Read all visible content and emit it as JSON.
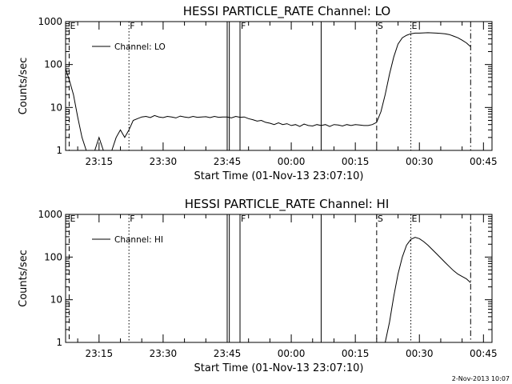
{
  "footer": {
    "timestamp": "2-Nov-2013 10:07"
  },
  "chart_data": [
    {
      "type": "line",
      "title": "HESSI PARTICLE_RATE Channel: LO",
      "xlabel": "Start Time (01-Nov-13 23:07:10)",
      "ylabel": "Counts/sec",
      "yscale": "log",
      "ylim": [
        1,
        1000
      ],
      "xlim": [
        "23:07:10",
        "00:47:00"
      ],
      "yticks": [
        "1",
        "10",
        "100",
        "1000"
      ],
      "xticks": [
        "23:15",
        "23:30",
        "23:45",
        "00:00",
        "00:15",
        "00:30",
        "00:45"
      ],
      "legend": {
        "label": "Channel: LO",
        "position": "top-left"
      },
      "markers": [
        {
          "label": "E",
          "time": "23:08",
          "style": "dashed"
        },
        {
          "label": "F",
          "time": "23:22",
          "style": "dotted"
        },
        {
          "label": "",
          "time": "23:45",
          "style": "solid"
        },
        {
          "label": "",
          "time": "23:45:30",
          "style": "solid"
        },
        {
          "label": "F",
          "time": "23:48",
          "style": "solid"
        },
        {
          "label": "",
          "time": "00:07",
          "style": "solid"
        },
        {
          "label": "S",
          "time": "00:20",
          "style": "dashed"
        },
        {
          "label": "E",
          "time": "00:28",
          "style": "dotted"
        },
        {
          "label": "",
          "time": "00:42",
          "style": "dashdot"
        }
      ],
      "series": [
        {
          "x": [
            "23:07:10",
            "23:08",
            "23:09",
            "23:10",
            "23:11",
            "23:12",
            "23:13",
            "23:14",
            "23:15",
            "23:16",
            "23:17",
            "23:18",
            "23:19",
            "23:20",
            "23:21",
            "23:22",
            "23:23",
            "23:24",
            "23:25",
            "23:26",
            "23:27",
            "23:28",
            "23:29",
            "23:30",
            "23:31",
            "23:32",
            "23:33",
            "23:34",
            "23:35",
            "23:36",
            "23:37",
            "23:38",
            "23:39",
            "23:40",
            "23:41",
            "23:42",
            "23:43",
            "23:44",
            "23:45",
            "23:46",
            "23:47",
            "23:48",
            "23:49",
            "23:50",
            "23:51",
            "23:52",
            "23:53",
            "23:54",
            "23:55",
            "23:56",
            "23:57",
            "23:58",
            "23:59",
            "00:00",
            "00:01",
            "00:02",
            "00:03",
            "00:04",
            "00:05",
            "00:06",
            "00:07",
            "00:08",
            "00:09",
            "00:10",
            "00:11",
            "00:12",
            "00:13",
            "00:14",
            "00:15",
            "00:16",
            "00:17",
            "00:18",
            "00:19",
            "00:20",
            "00:21",
            "00:22",
            "00:23",
            "00:24",
            "00:25",
            "00:26",
            "00:27",
            "00:28",
            "00:29",
            "00:30",
            "00:31",
            "00:32",
            "00:33",
            "00:34",
            "00:35",
            "00:36",
            "00:37",
            "00:38",
            "00:39",
            "00:40",
            "00:41",
            "00:42"
          ],
          "values": [
            80,
            45,
            20,
            6,
            2,
            1,
            1,
            1,
            2,
            1,
            1,
            1,
            2,
            3,
            2,
            3,
            5,
            5.5,
            6,
            6.2,
            5.8,
            6.5,
            6,
            5.8,
            6.2,
            6,
            5.7,
            6.3,
            6,
            5.8,
            6.2,
            5.9,
            6,
            6.1,
            5.8,
            6.2,
            5.9,
            6,
            6,
            5.7,
            6.2,
            5.9,
            6,
            5.5,
            5.2,
            4.8,
            5,
            4.5,
            4.3,
            4,
            4.4,
            4,
            4.2,
            3.8,
            4,
            3.6,
            4.1,
            3.8,
            3.7,
            4,
            3.8,
            4,
            3.6,
            4,
            3.9,
            3.7,
            4,
            3.8,
            4,
            3.9,
            3.8,
            3.8,
            4,
            4.5,
            8,
            20,
            60,
            150,
            300,
            420,
            480,
            520,
            540,
            540,
            545,
            550,
            545,
            540,
            530,
            520,
            500,
            460,
            420,
            370,
            320,
            260
          ]
        }
      ]
    },
    {
      "type": "line",
      "title": "HESSI PARTICLE_RATE Channel: HI",
      "xlabel": "Start Time (01-Nov-13 23:07:10)",
      "ylabel": "Counts/sec",
      "yscale": "log",
      "ylim": [
        1,
        1000
      ],
      "xlim": [
        "23:07:10",
        "00:47:00"
      ],
      "yticks": [
        "1",
        "10",
        "100",
        "1000"
      ],
      "xticks": [
        "23:15",
        "23:30",
        "23:45",
        "00:00",
        "00:15",
        "00:30",
        "00:45"
      ],
      "legend": {
        "label": "Channel: HI",
        "position": "top-left"
      },
      "markers": [
        {
          "label": "E",
          "time": "23:08",
          "style": "dashed"
        },
        {
          "label": "F",
          "time": "23:22",
          "style": "dotted"
        },
        {
          "label": "",
          "time": "23:45",
          "style": "solid"
        },
        {
          "label": "",
          "time": "23:45:30",
          "style": "solid"
        },
        {
          "label": "F",
          "time": "23:48",
          "style": "solid"
        },
        {
          "label": "",
          "time": "00:07",
          "style": "solid"
        },
        {
          "label": "S",
          "time": "00:20",
          "style": "dashed"
        },
        {
          "label": "E",
          "time": "00:28",
          "style": "dotted"
        },
        {
          "label": "",
          "time": "00:42",
          "style": "dashdot"
        }
      ],
      "series": [
        {
          "x": [
            "00:22",
            "00:23",
            "00:24",
            "00:25",
            "00:26",
            "00:27",
            "00:28",
            "00:29",
            "00:30",
            "00:31",
            "00:32",
            "00:33",
            "00:34",
            "00:35",
            "00:36",
            "00:37",
            "00:38",
            "00:39",
            "00:40",
            "00:41",
            "00:42"
          ],
          "values": [
            1,
            3,
            12,
            40,
            100,
            190,
            260,
            290,
            270,
            230,
            190,
            150,
            120,
            95,
            75,
            60,
            48,
            40,
            35,
            31,
            25
          ]
        }
      ]
    }
  ]
}
